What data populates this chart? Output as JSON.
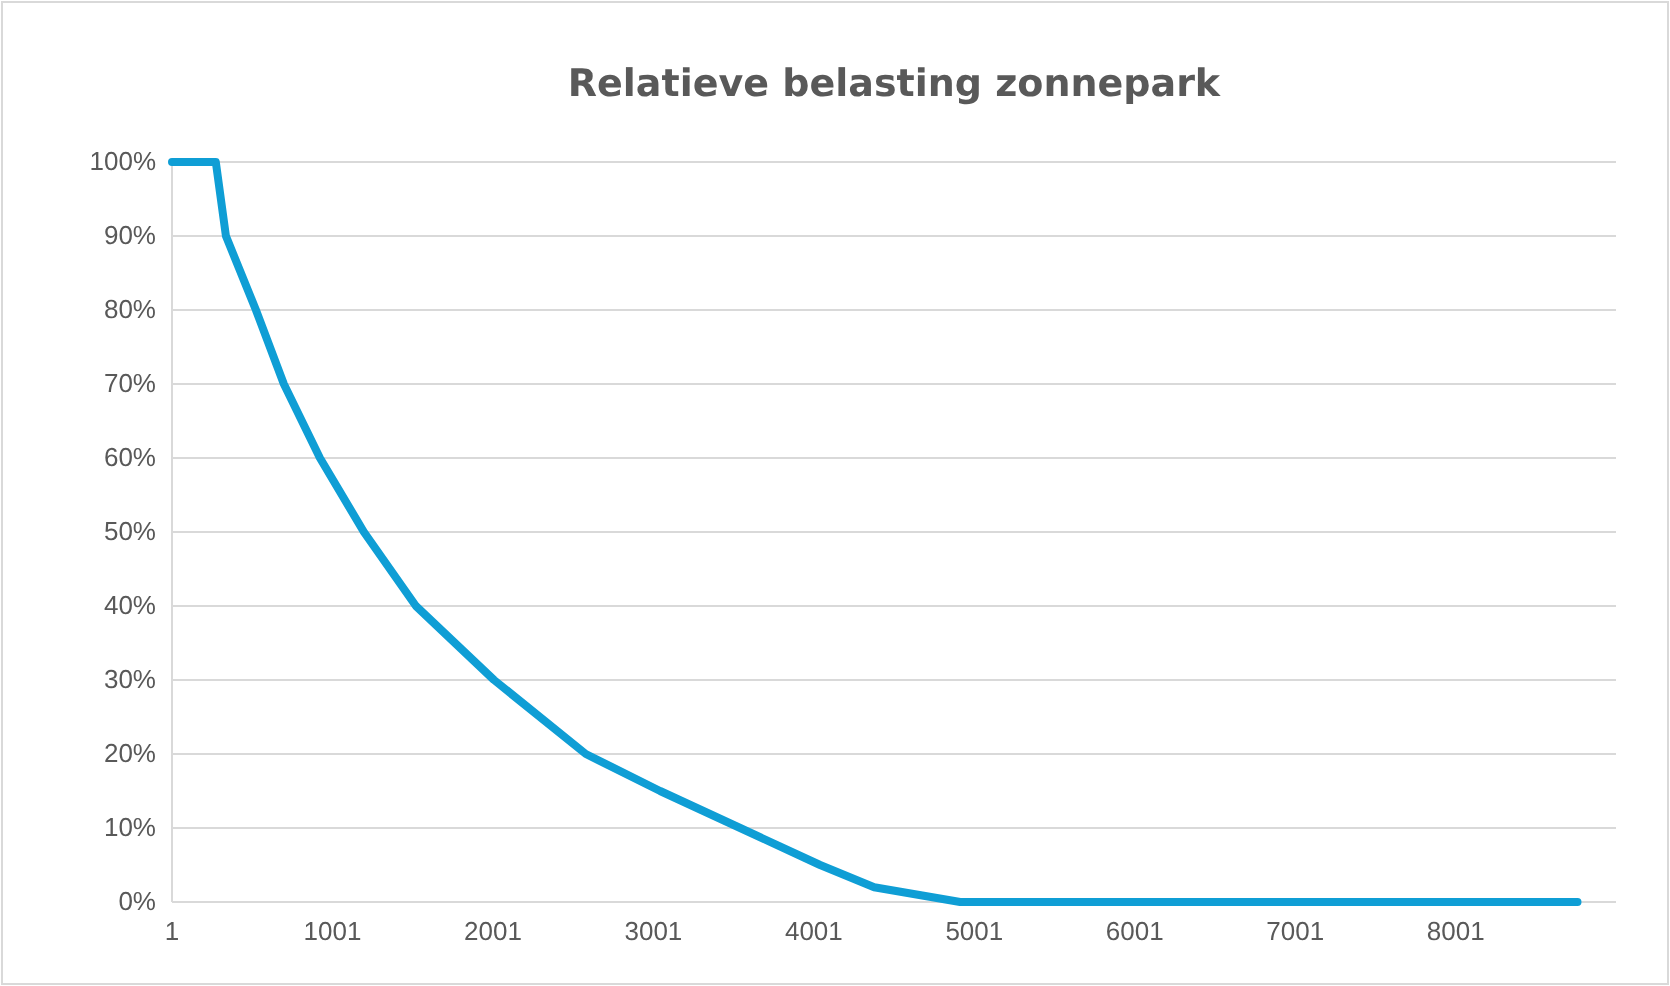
{
  "chart_data": {
    "type": "line",
    "title": "Relatieve belasting zonnepark",
    "x": [
      1,
      274,
      337,
      524,
      698,
      923,
      1197,
      1521,
      2008,
      2580,
      3043,
      3542,
      4040,
      4377,
      4913,
      8760
    ],
    "series": [
      {
        "color": "#0f9ed5",
        "values": [
          100,
          100,
          90,
          80,
          70,
          60,
          50,
          40,
          30,
          20,
          15,
          10,
          5,
          2,
          0,
          0
        ]
      }
    ],
    "xlim": [
      1,
      9000
    ],
    "xticks": [
      1,
      1001,
      2001,
      3001,
      4001,
      5001,
      6001,
      7001,
      8001
    ],
    "ylim": [
      0,
      100
    ],
    "yticks": [
      {
        "value": 0,
        "label": "0%"
      },
      {
        "value": 10,
        "label": "10%"
      },
      {
        "value": 20,
        "label": "20%"
      },
      {
        "value": 30,
        "label": "30%"
      },
      {
        "value": 40,
        "label": "40%"
      },
      {
        "value": 50,
        "label": "50%"
      },
      {
        "value": 60,
        "label": "60%"
      },
      {
        "value": 70,
        "label": "70%"
      },
      {
        "value": 80,
        "label": "80%"
      },
      {
        "value": 90,
        "label": "90%"
      },
      {
        "value": 100,
        "label": "100%"
      }
    ],
    "grid": "y",
    "marker": "none",
    "line_style": "solid"
  }
}
